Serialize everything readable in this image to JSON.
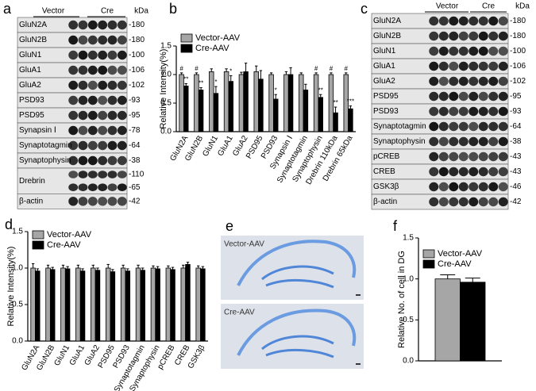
{
  "panel_a": {
    "label": "a",
    "lanes": [
      "Vector",
      "Cre"
    ],
    "unit": "kDa",
    "rows": [
      {
        "protein": "GluN2A",
        "kda": [
          "-180"
        ]
      },
      {
        "protein": "GluN2B",
        "kda": [
          "-180"
        ]
      },
      {
        "protein": "GluN1",
        "kda": [
          "-100"
        ]
      },
      {
        "protein": "GluA1",
        "kda": [
          "-106"
        ]
      },
      {
        "protein": "GluA2",
        "kda": [
          "-102"
        ]
      },
      {
        "protein": "PSD93",
        "kda": [
          "-93"
        ]
      },
      {
        "protein": "PSD95",
        "kda": [
          "-95"
        ]
      },
      {
        "protein": "Synapsin Ⅰ",
        "kda": [
          "-78"
        ]
      },
      {
        "protein": "Synaptotagmin",
        "kda": [
          "-64"
        ]
      },
      {
        "protein": "Synaptophysin",
        "kda": [
          "-38"
        ]
      },
      {
        "protein": "Drebrin",
        "kda": [
          "-110",
          "-65"
        ]
      },
      {
        "protein": "β-actin",
        "kda": [
          "-42"
        ]
      }
    ]
  },
  "panel_c": {
    "label": "c",
    "lanes": [
      "Vector",
      "Cre"
    ],
    "unit": "kDa",
    "rows": [
      {
        "protein": "GluN2A",
        "kda": [
          "-180"
        ]
      },
      {
        "protein": "GluN2B",
        "kda": [
          "-180"
        ]
      },
      {
        "protein": "GluN1",
        "kda": [
          "-100"
        ]
      },
      {
        "protein": "GluA1",
        "kda": [
          "-106"
        ]
      },
      {
        "protein": "GluA2",
        "kda": [
          "-102"
        ]
      },
      {
        "protein": "PSD95",
        "kda": [
          "-95"
        ]
      },
      {
        "protein": "PSD93",
        "kda": [
          "-93"
        ]
      },
      {
        "protein": "Synaptotagmin",
        "kda": [
          "-64"
        ]
      },
      {
        "protein": "Synaptophysin",
        "kda": [
          "-38"
        ]
      },
      {
        "protein": "pCREB",
        "kda": [
          "-43"
        ]
      },
      {
        "protein": "CREB",
        "kda": [
          "-43"
        ]
      },
      {
        "protein": "GSK3β",
        "kda": [
          "-46"
        ]
      },
      {
        "protein": "β-actin",
        "kda": [
          "-42"
        ]
      }
    ]
  },
  "panel_e": {
    "label": "e",
    "images": [
      {
        "caption": "Vector-AAV"
      },
      {
        "caption": "Cre-AAV"
      }
    ]
  },
  "chart_data": [
    {
      "type": "bar",
      "panel_label": "b",
      "ylabel": "Relative Intensity(%)",
      "legend": "upper left",
      "categories": [
        "GluN2A",
        "GluN2B",
        "GluN1",
        "GluA1",
        "GluA2",
        "PSD95",
        "PSD93",
        "Synapsin Ⅰ",
        "Synaptotagmin",
        "Synaptophysin",
        "Drebrin 110kDa",
        "Drebrin 65kDa"
      ],
      "series": [
        {
          "name": "Vector-AAV",
          "color": "#a6a6a6",
          "values": [
            1.0,
            1.0,
            1.05,
            1.05,
            1.0,
            1.05,
            1.0,
            1.0,
            1.0,
            1.0,
            1.0,
            1.0
          ],
          "errors": [
            0.03,
            0.03,
            0.05,
            0.05,
            0.04,
            0.1,
            0.03,
            0.05,
            0.03,
            0.03,
            0.03,
            0.03
          ],
          "marks": [
            "#",
            "#",
            null,
            null,
            null,
            null,
            null,
            null,
            null,
            "#",
            "#",
            "#"
          ]
        },
        {
          "name": "Cre-AAV",
          "color": "#000000",
          "values": [
            0.8,
            0.73,
            0.67,
            0.88,
            1.05,
            0.92,
            0.57,
            1.0,
            0.73,
            0.6,
            0.33,
            0.4
          ],
          "errors": [
            0.04,
            0.04,
            0.12,
            0.1,
            0.15,
            0.15,
            0.08,
            0.12,
            0.1,
            0.05,
            0.1,
            0.05
          ],
          "marks": [
            "**",
            "**",
            "*",
            "*",
            null,
            null,
            "*",
            null,
            null,
            "**",
            "**",
            "***"
          ]
        }
      ],
      "ylim": [
        0,
        1.5
      ],
      "yticks": [
        {
          "value": 0,
          "label": "0.0"
        },
        {
          "value": 0.5,
          "label": "0.5"
        },
        {
          "value": 1,
          "label": "1.0"
        },
        {
          "value": 1.5,
          "label": "1.5"
        }
      ]
    },
    {
      "type": "bar",
      "panel_label": "d",
      "ylabel": "Relative Intensity(%)",
      "legend": "upper left",
      "categories": [
        "GluN2A",
        "GluN2B",
        "GluN1",
        "GluA1",
        "GluA2",
        "PSD95",
        "PSD93",
        "Synaptotagmin",
        "Synaptophysin",
        "pCREB",
        "CREB",
        "GSK3β"
      ],
      "series": [
        {
          "name": "Vector-AAV",
          "color": "#a6a6a6",
          "values": [
            1.0,
            1.0,
            1.0,
            1.0,
            1.0,
            1.0,
            1.0,
            1.0,
            1.0,
            1.0,
            1.0,
            1.0
          ],
          "errors": [
            0.06,
            0.04,
            0.04,
            0.04,
            0.04,
            0.05,
            0.04,
            0.04,
            0.03,
            0.03,
            0.04,
            0.03
          ]
        },
        {
          "name": "Cre-AAV",
          "color": "#000000",
          "values": [
            0.96,
            0.98,
            0.99,
            0.96,
            0.97,
            0.95,
            0.96,
            0.97,
            0.99,
            0.98,
            1.05,
            0.99
          ],
          "errors": [
            0.03,
            0.03,
            0.03,
            0.03,
            0.03,
            0.03,
            0.03,
            0.03,
            0.03,
            0.03,
            0.03,
            0.03
          ]
        }
      ],
      "ylim": [
        0,
        1.5
      ],
      "yticks": [
        {
          "value": 0,
          "label": "0.0"
        },
        {
          "value": 0.5,
          "label": "0.5"
        },
        {
          "value": 1,
          "label": "1.0"
        },
        {
          "value": 1.5,
          "label": "1.5"
        }
      ]
    },
    {
      "type": "bar",
      "panel_label": "f",
      "ylabel": "Relative No. of cell in DG",
      "legend": "upper left",
      "categories": [
        null
      ],
      "series": [
        {
          "name": "Vector-AAV",
          "color": "#a6a6a6",
          "values": [
            1.0
          ],
          "errors": [
            0.05
          ]
        },
        {
          "name": "Cre-AAV",
          "color": "#000000",
          "values": [
            0.96
          ],
          "errors": [
            0.05
          ]
        }
      ],
      "ylim": [
        0,
        1.5
      ],
      "yticks": [
        {
          "value": 0,
          "label": "0.0"
        },
        {
          "value": 0.5,
          "label": "0.5"
        },
        {
          "value": 1,
          "label": "1.0"
        },
        {
          "value": 1.5,
          "label": "1.5"
        }
      ]
    }
  ]
}
